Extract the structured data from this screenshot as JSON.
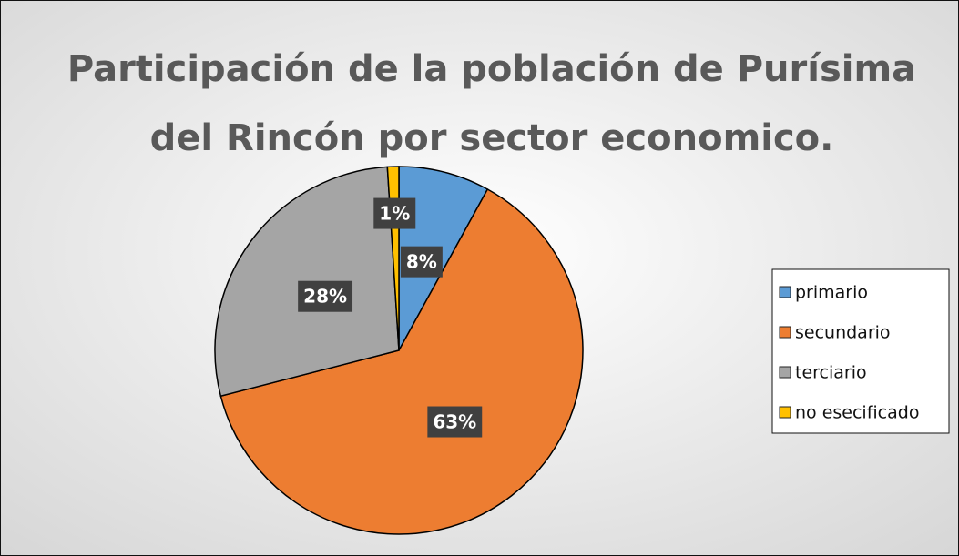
{
  "chart_data": {
    "type": "pie",
    "title": [
      "Participación de la población de Purísima",
      "del Rincón por sector economico."
    ],
    "categories": [
      "primario",
      "secundario",
      "terciario",
      "no esecificado"
    ],
    "values": [
      8,
      63,
      28,
      1
    ],
    "value_labels": [
      "8%",
      "63%",
      "28%",
      "1%"
    ],
    "colors": [
      "#5b9bd5",
      "#ed7d31",
      "#a5a5a5",
      "#ffc000"
    ],
    "legend": "right"
  }
}
